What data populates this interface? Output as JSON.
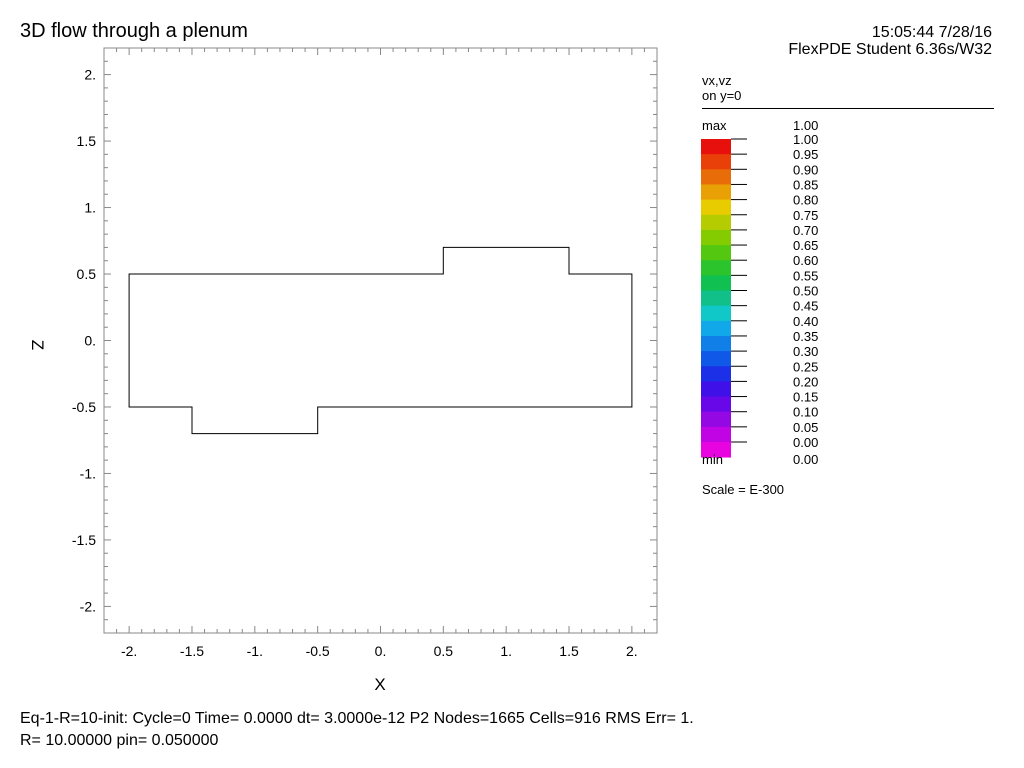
{
  "header": {
    "title": "3D flow through a plenum",
    "timestamp": "15:05:44 7/28/16",
    "product": "FlexPDE Student 6.36s/W32"
  },
  "chart_data": {
    "type": "contour",
    "xlabel": "X",
    "ylabel": "Z",
    "xlim": [
      -2.2,
      2.2
    ],
    "ylim": [
      -2.2,
      2.2
    ],
    "x_ticks": [
      {
        "value": -2.0,
        "label": "-2."
      },
      {
        "value": -1.5,
        "label": "-1.5"
      },
      {
        "value": -1.0,
        "label": "-1."
      },
      {
        "value": -0.5,
        "label": "-0.5"
      },
      {
        "value": 0.0,
        "label": "0."
      },
      {
        "value": 0.5,
        "label": "0.5"
      },
      {
        "value": 1.0,
        "label": "1."
      },
      {
        "value": 1.5,
        "label": "1.5"
      },
      {
        "value": 2.0,
        "label": "2."
      }
    ],
    "y_ticks": [
      {
        "value": 2.0,
        "label": "2."
      },
      {
        "value": 1.5,
        "label": "1.5"
      },
      {
        "value": 1.0,
        "label": "1."
      },
      {
        "value": 0.5,
        "label": "0.5"
      },
      {
        "value": 0.0,
        "label": "0."
      },
      {
        "value": -0.5,
        "label": "-0.5"
      },
      {
        "value": -1.0,
        "label": "-1."
      },
      {
        "value": -1.5,
        "label": "-1.5"
      },
      {
        "value": -2.0,
        "label": "-2."
      }
    ],
    "domain_outline": [
      [
        -2.0,
        0.5
      ],
      [
        0.5,
        0.5
      ],
      [
        0.5,
        0.7
      ],
      [
        1.5,
        0.7
      ],
      [
        1.5,
        0.5
      ],
      [
        2.0,
        0.5
      ],
      [
        2.0,
        -0.5
      ],
      [
        -0.5,
        -0.5
      ],
      [
        -0.5,
        -0.7
      ],
      [
        -1.5,
        -0.7
      ],
      [
        -1.5,
        -0.5
      ],
      [
        -2.0,
        -0.5
      ]
    ],
    "legend": {
      "title_line1": "vx,vz",
      "title_line2": "on y=0",
      "max_label": "max",
      "max_value": "1.00",
      "min_label": "min",
      "min_value": "0.00",
      "scale": "Scale = E-300",
      "levels": [
        "1.00",
        "0.95",
        "0.90",
        "0.85",
        "0.80",
        "0.75",
        "0.70",
        "0.65",
        "0.60",
        "0.55",
        "0.50",
        "0.45",
        "0.40",
        "0.35",
        "0.30",
        "0.25",
        "0.20",
        "0.15",
        "0.10",
        "0.05",
        "0.00"
      ],
      "colors": [
        "#e8100c",
        "#e84008",
        "#e86c08",
        "#e8a004",
        "#e8cc00",
        "#b4cc00",
        "#84cc00",
        "#54c810",
        "#2cc42c",
        "#10c050",
        "#10c088",
        "#10c8c8",
        "#10a8e8",
        "#1080e8",
        "#1058e8",
        "#1c30e8",
        "#4010e8",
        "#6808e8",
        "#9408e4",
        "#c004e4",
        "#e804e0"
      ]
    }
  },
  "status": {
    "line1": "Eq-1-R=10-init:  Cycle=0  Time= 0.0000  dt= 3.0000e-12  P2  Nodes=1665 Cells=916 RMS Err= 1.",
    "line2": "R=  10.00000  pin=  0.050000"
  }
}
